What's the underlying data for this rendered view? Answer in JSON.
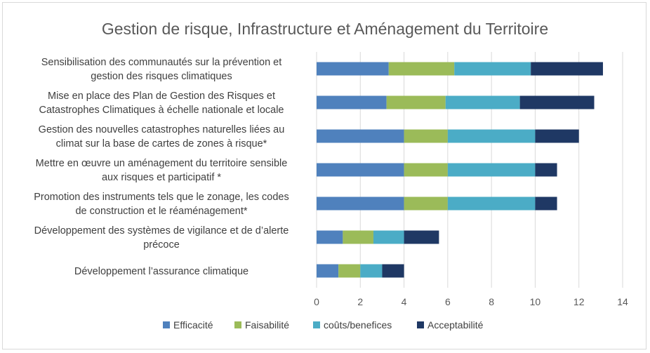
{
  "chart_data": {
    "type": "bar",
    "orientation": "horizontal",
    "stacked": true,
    "title": "Gestion de risque, Infrastructure et Aménagement du Territoire",
    "xlabel": "",
    "ylabel": "",
    "xlim": [
      0,
      14
    ],
    "x_ticks": [
      "0",
      "2",
      "4",
      "6",
      "8",
      "10",
      "12",
      "14"
    ],
    "grid": true,
    "legend_position": "bottom",
    "categories": [
      [
        "Sensibilisation des communautés sur la prévention et",
        "gestion des risques climatiques"
      ],
      [
        "Mise en place des Plan de Gestion des Risques et",
        "Catastrophes Climatiques à échelle nationale et locale"
      ],
      [
        "Gestion des nouvelles catastrophes naturelles liées au",
        "climat sur la base de cartes de zones à risque*"
      ],
      [
        "Mettre en œuvre un aménagement du territoire sensible",
        "aux risques et participatif *"
      ],
      [
        "Promotion des instruments tels que le zonage, les codes",
        "de construction et le réaménagement*"
      ],
      [
        "Développement des systèmes de vigilance et de d’alerte",
        "précoce"
      ],
      [
        "Développement l’assurance  climatique"
      ]
    ],
    "series": [
      {
        "name": "Efficacité",
        "color": "#4f81bd",
        "values": [
          3.3,
          3.2,
          4.0,
          4.0,
          4.0,
          1.2,
          1.0
        ]
      },
      {
        "name": "Faisabilité",
        "color": "#9bbb59",
        "values": [
          3.0,
          2.7,
          2.0,
          2.0,
          2.0,
          1.4,
          1.0
        ]
      },
      {
        "name": "coûts/benefices",
        "color": "#4bacc6",
        "values": [
          3.5,
          3.4,
          4.0,
          4.0,
          4.0,
          1.4,
          1.0
        ]
      },
      {
        "name": "Acceptabilité",
        "color": "#1f3864",
        "values": [
          3.3,
          3.4,
          2.0,
          1.0,
          1.0,
          1.6,
          1.0
        ]
      }
    ]
  }
}
